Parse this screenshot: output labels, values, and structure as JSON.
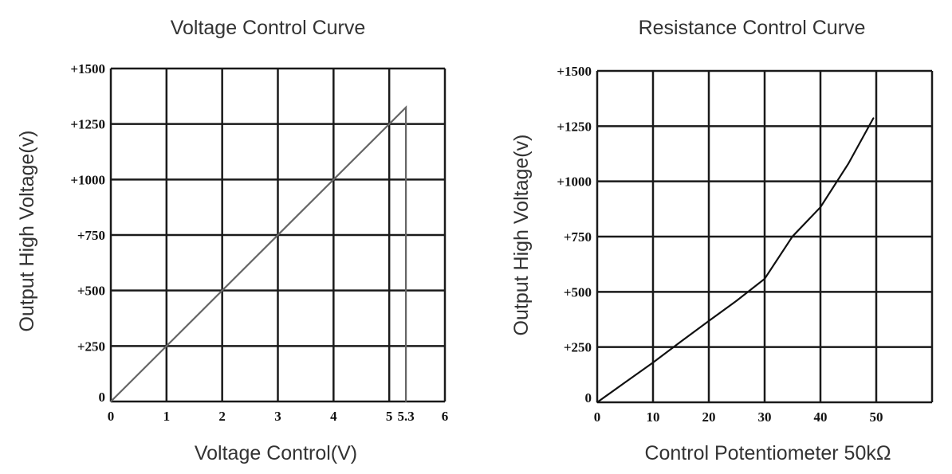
{
  "chart_data": [
    {
      "type": "line",
      "title": "Voltage  Control Curve",
      "xlabel": "Voltage  Control(V)",
      "ylabel": "Output High Voltage(v)",
      "xlim": [
        0,
        6
      ],
      "ylim": [
        0,
        1500
      ],
      "x_ticks": [
        "0",
        "1",
        "2",
        "3",
        "4",
        "5",
        "5.3",
        "6"
      ],
      "x_tick_values": [
        0,
        1,
        2,
        3,
        4,
        5,
        5.3,
        6
      ],
      "y_ticks": [
        "0",
        "+250",
        "+500",
        "+750",
        "+1000",
        "+1250",
        "+1500"
      ],
      "y_tick_values": [
        0,
        250,
        500,
        750,
        1000,
        1250,
        1500
      ],
      "grid": true,
      "line_color": "#666666",
      "series": [
        {
          "x": [
            0,
            5.3,
            5.3
          ],
          "y": [
            0,
            1325,
            0
          ]
        }
      ]
    },
    {
      "type": "line",
      "title": "Resistance Control Curve",
      "xlabel": "Control Potentiometer 50kΩ",
      "ylabel": "Output High Voltage(v)",
      "xlim": [
        0,
        60
      ],
      "ylim": [
        0,
        1500
      ],
      "x_ticks": [
        "0",
        "10",
        "20",
        "30",
        "40",
        "50"
      ],
      "x_tick_values": [
        0,
        10,
        20,
        30,
        40,
        50
      ],
      "y_ticks": [
        "0",
        "+250",
        "+500",
        "+750",
        "+1000",
        "+1250",
        "+1500"
      ],
      "y_tick_values": [
        0,
        250,
        500,
        750,
        1000,
        1250,
        1500
      ],
      "grid": true,
      "line_color": "#111111",
      "series": [
        {
          "x": [
            0,
            5,
            10,
            15,
            20,
            25,
            30,
            35,
            40,
            45,
            49.5
          ],
          "y": [
            0,
            90,
            180,
            275,
            368,
            460,
            559,
            751,
            883,
            1080,
            1287
          ]
        }
      ]
    }
  ]
}
